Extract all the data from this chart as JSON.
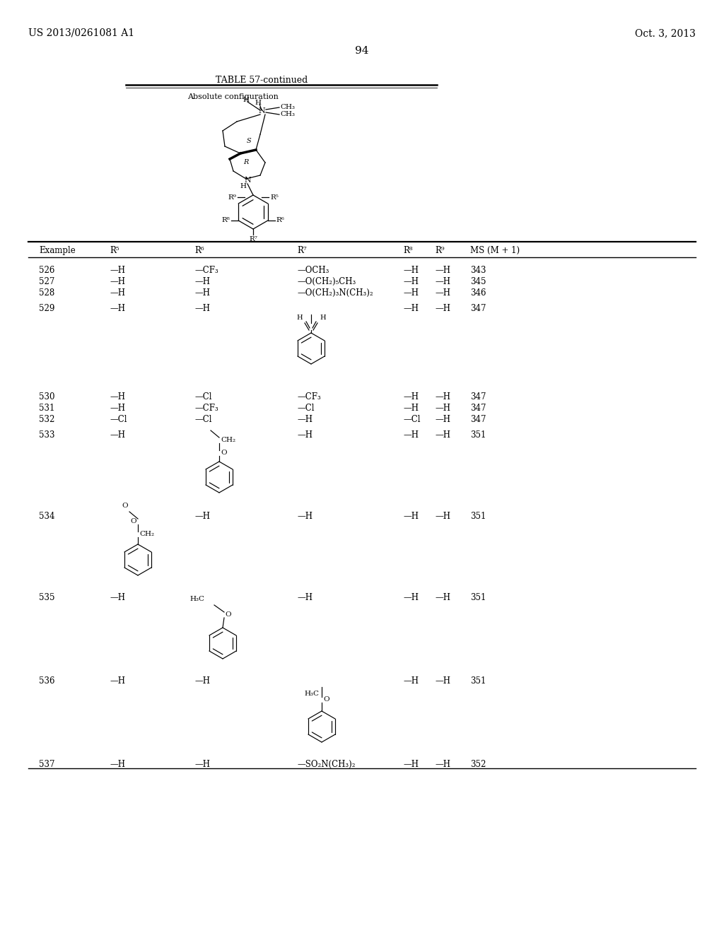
{
  "patent_number": "US 2013/0261081 A1",
  "date": "Oct. 3, 2013",
  "page_number": "94",
  "table_title": "TABLE 57-continued",
  "abs_config_label": "Absolute configuration",
  "bg_color": "#ffffff",
  "text_color": "#000000"
}
